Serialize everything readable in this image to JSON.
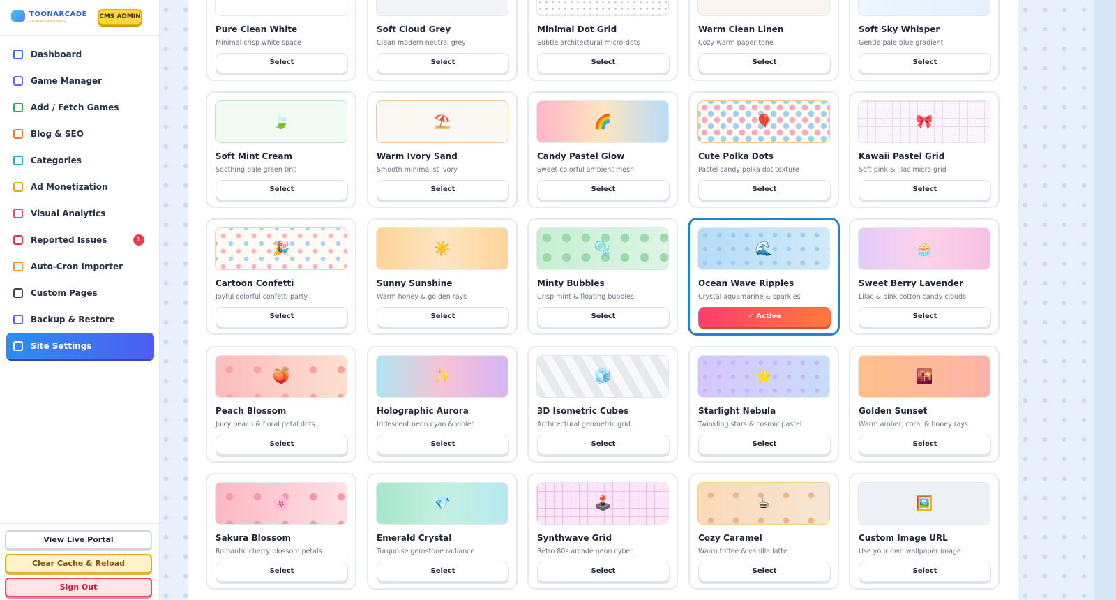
{
  "sidebar": {
    "brand": {
      "name": "TOONARCADE",
      "tagline": "• FUN CARTOON GAMES •",
      "badge": "CMS ADMIN"
    },
    "nav": [
      {
        "label": "Dashboard"
      },
      {
        "label": "Game Manager"
      },
      {
        "label": "Add / Fetch Games"
      },
      {
        "label": "Blog & SEO"
      },
      {
        "label": "Categories"
      },
      {
        "label": "Ad Monetization"
      },
      {
        "label": "Visual Analytics"
      },
      {
        "label": "Reported Issues",
        "badge": "1"
      },
      {
        "label": "Auto-Cron Importer"
      },
      {
        "label": "Custom Pages"
      },
      {
        "label": "Backup & Restore"
      },
      {
        "label": "Site Settings",
        "active": true
      }
    ],
    "footer": [
      "View Live Portal",
      "Clear Cache & Reload",
      "Sign Out"
    ]
  },
  "themes": [
    {
      "name": "Pure Clean White",
      "description": "Minimal crisp white space",
      "button": "Select"
    },
    {
      "name": "Soft Cloud Grey",
      "description": "Clean modern neutral grey",
      "button": "Select"
    },
    {
      "name": "Minimal Dot Grid",
      "description": "Subtle architectural micro-dots",
      "button": "Select"
    },
    {
      "name": "Warm Clean Linen",
      "description": "Cozy warm paper tone",
      "button": "Select"
    },
    {
      "name": "Soft Sky Whisper",
      "description": "Gentle pale blue gradient",
      "button": "Select"
    },
    {
      "name": "Soft Mint Cream",
      "description": "Soothing pale green tint",
      "icon": "🍃",
      "button": "Select"
    },
    {
      "name": "Warm Ivory Sand",
      "description": "Smooth minimalist ivory",
      "icon": "⛱️",
      "button": "Select"
    },
    {
      "name": "Candy Pastel Glow",
      "description": "Sweet colorful ambient mesh",
      "icon": "🌈",
      "button": "Select"
    },
    {
      "name": "Cute Polka Dots",
      "description": "Pastel candy polka dot texture",
      "icon": "🎈",
      "button": "Select"
    },
    {
      "name": "Kawaii Pastel Grid",
      "description": "Soft pink & lilac micro grid",
      "icon": "🎀",
      "button": "Select"
    },
    {
      "name": "Cartoon Confetti",
      "description": "Joyful colorful confetti party",
      "icon": "🎉",
      "button": "Select"
    },
    {
      "name": "Sunny Sunshine",
      "description": "Warm honey & golden rays",
      "icon": "☀️",
      "button": "Select"
    },
    {
      "name": "Minty Bubbles",
      "description": "Crisp mint & floating bubbles",
      "icon": "🫧",
      "button": "Select"
    },
    {
      "name": "Ocean Wave Ripples",
      "description": "Crystal aquamarine & sparkles",
      "icon": "🌊",
      "button": "✓ Active",
      "active": true
    },
    {
      "name": "Sweet Berry Lavender",
      "description": "Lilac & pink cotton candy clouds",
      "icon": "🧁",
      "button": "Select"
    },
    {
      "name": "Peach Blossom",
      "description": "Juicy peach & floral petal dots",
      "icon": "🍑",
      "button": "Select"
    },
    {
      "name": "Holographic Aurora",
      "description": "Iridescent neon cyan & violet",
      "icon": "✨",
      "button": "Select"
    },
    {
      "name": "3D Isometric Cubes",
      "description": "Architectural geometric grid",
      "icon": "🧊",
      "button": "Select"
    },
    {
      "name": "Starlight Nebula",
      "description": "Twinkling stars & cosmic pastel",
      "icon": "⭐",
      "button": "Select"
    },
    {
      "name": "Golden Sunset",
      "description": "Warm amber, coral & honey rays",
      "icon": "🌇",
      "button": "Select"
    },
    {
      "name": "Sakura Blossom",
      "description": "Romantic cherry blossom petals",
      "icon": "🌸",
      "button": "Select"
    },
    {
      "name": "Emerald Crystal",
      "description": "Turquoise gemstone radiance",
      "icon": "💎",
      "button": "Select"
    },
    {
      "name": "Synthwave Grid",
      "description": "Retro 80s arcade neon cyber",
      "icon": "🕹️",
      "button": "Select"
    },
    {
      "name": "Cozy Caramel",
      "description": "Warm toffee & vanilla latte",
      "icon": "☕",
      "button": "Select"
    },
    {
      "name": "Custom Image URL",
      "description": "Use your own wallpaper image",
      "icon": "🖼️",
      "button": "Select"
    }
  ]
}
